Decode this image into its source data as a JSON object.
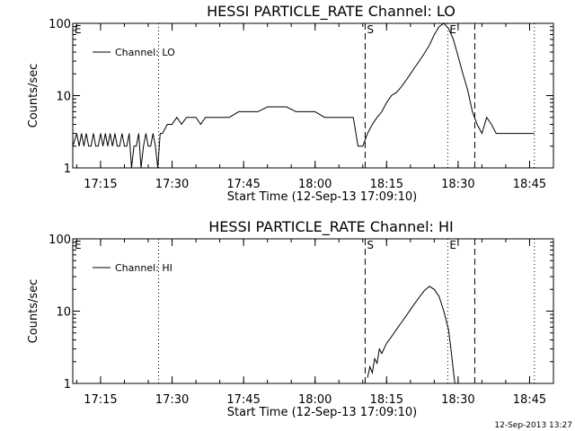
{
  "footer": {
    "timestamp": "12-Sep-2013 13:27"
  },
  "chart_data": [
    {
      "type": "line",
      "title": "HESSI PARTICLE_RATE Channel: LO",
      "xlabel": "Start Time (12-Sep-13 17:09:10)",
      "ylabel": "Counts/sec",
      "y_scale": "log",
      "xlim": [
        "17:09:10",
        "18:50:00"
      ],
      "ylim": [
        1,
        100
      ],
      "x_ticks": [
        "17:15",
        "17:30",
        "17:45",
        "18:00",
        "18:15",
        "18:30",
        "18:45"
      ],
      "y_ticks": [
        "1",
        "10",
        "100"
      ],
      "legend": {
        "placement": "top-left",
        "entries": [
          "Channel: LO"
        ]
      },
      "markers": [
        {
          "label": "E",
          "time": "17:09:10",
          "style": "none"
        },
        {
          "label": "",
          "time": "17:27:10",
          "style": "dotted"
        },
        {
          "label": "S",
          "time": "18:10:30",
          "style": "dashed"
        },
        {
          "label": "E",
          "time": "18:27:50",
          "style": "dotted"
        },
        {
          "label": "",
          "time": "18:33:30",
          "style": "dashed"
        },
        {
          "label": "",
          "time": "18:46:00",
          "style": "dotted"
        }
      ],
      "series": [
        {
          "x": [
            "17:09:10",
            "17:10:00",
            "17:10:30",
            "17:11:00",
            "17:11:30",
            "17:12:00",
            "17:12:30",
            "17:13:00",
            "17:13:30",
            "17:14:00",
            "17:14:30",
            "17:15:00",
            "17:15:30",
            "17:16:00",
            "17:16:30",
            "17:17:00",
            "17:17:30",
            "17:18:00",
            "17:18:30",
            "17:19:00",
            "17:19:30",
            "17:20:00",
            "17:20:30",
            "17:21:00",
            "17:21:30",
            "17:22:00",
            "17:22:30",
            "17:23:00",
            "17:23:30",
            "17:24:00",
            "17:24:30",
            "17:25:00",
            "17:25:30",
            "17:26:00",
            "17:26:30",
            "17:27:00",
            "17:27:30",
            "17:28:00",
            "17:29:00",
            "17:30:00",
            "17:31:00",
            "17:32:00",
            "17:33:00",
            "17:34:00",
            "17:35:00",
            "17:36:00",
            "17:37:00",
            "17:38:00",
            "17:39:00",
            "17:40:00",
            "17:42:00",
            "17:44:00",
            "17:46:00",
            "17:48:00",
            "17:50:00",
            "17:52:00",
            "17:54:00",
            "17:56:00",
            "17:58:00",
            "18:00:00",
            "18:02:00",
            "18:04:00",
            "18:06:00",
            "18:07:00",
            "18:08:00",
            "18:09:00",
            "18:10:00",
            "18:11:00",
            "18:12:00",
            "18:13:00",
            "18:14:00",
            "18:15:00",
            "18:16:00",
            "18:17:00",
            "18:18:00",
            "18:19:00",
            "18:20:00",
            "18:21:00",
            "18:22:00",
            "18:23:00",
            "18:24:00",
            "18:25:00",
            "18:26:00",
            "18:27:00",
            "18:28:00",
            "18:29:00",
            "18:30:00",
            "18:31:00",
            "18:32:00",
            "18:33:00",
            "18:34:00",
            "18:35:00",
            "18:36:00",
            "18:37:00",
            "18:38:00",
            "18:40:00",
            "18:42:00",
            "18:44:00",
            "18:46:00"
          ],
          "y": [
            2,
            3,
            2,
            3,
            2,
            3,
            2,
            2,
            3,
            2,
            2,
            3,
            2,
            3,
            2,
            3,
            2,
            3,
            2,
            2,
            3,
            2,
            2,
            3,
            1,
            2,
            2,
            3,
            1,
            2,
            3,
            2,
            2,
            3,
            2,
            1,
            3,
            3,
            4,
            4,
            5,
            4,
            5,
            5,
            5,
            4,
            5,
            5,
            5,
            5,
            5,
            6,
            6,
            6,
            7,
            7,
            7,
            6,
            6,
            6,
            5,
            5,
            5,
            5,
            5,
            2,
            2,
            3,
            4,
            5,
            6,
            8,
            10,
            11,
            13,
            16,
            20,
            25,
            31,
            39,
            50,
            70,
            90,
            100,
            85,
            60,
            35,
            20,
            12,
            6,
            4,
            3,
            5,
            4,
            3,
            3,
            3,
            3,
            3
          ]
        }
      ]
    },
    {
      "type": "line",
      "title": "HESSI PARTICLE_RATE Channel: HI",
      "xlabel": "Start Time (12-Sep-13 17:09:10)",
      "ylabel": "Counts/sec",
      "y_scale": "log",
      "xlim": [
        "17:09:10",
        "18:50:00"
      ],
      "ylim": [
        1,
        100
      ],
      "x_ticks": [
        "17:15",
        "17:30",
        "17:45",
        "18:00",
        "18:15",
        "18:30",
        "18:45"
      ],
      "y_ticks": [
        "1",
        "10",
        "100"
      ],
      "legend": {
        "placement": "top-left",
        "entries": [
          "Channel: HI"
        ]
      },
      "markers": [
        {
          "label": "E",
          "time": "17:09:10",
          "style": "none"
        },
        {
          "label": "",
          "time": "17:27:10",
          "style": "dotted"
        },
        {
          "label": "S",
          "time": "18:10:30",
          "style": "dashed"
        },
        {
          "label": "E",
          "time": "18:27:50",
          "style": "dotted"
        },
        {
          "label": "",
          "time": "18:33:30",
          "style": "dashed"
        },
        {
          "label": "",
          "time": "18:46:00",
          "style": "dotted"
        }
      ],
      "series": [
        {
          "x": [
            "18:11:00",
            "18:11:30",
            "18:12:00",
            "18:12:30",
            "18:13:00",
            "18:13:30",
            "18:14:00",
            "18:15:00",
            "18:16:00",
            "18:17:00",
            "18:18:00",
            "18:19:00",
            "18:20:00",
            "18:21:00",
            "18:22:00",
            "18:23:00",
            "18:24:00",
            "18:25:00",
            "18:26:00",
            "18:27:00",
            "18:28:00",
            "18:28:30",
            "18:29:00",
            "18:29:20"
          ],
          "y": [
            1.2,
            1.7,
            1.4,
            2.2,
            1.9,
            3.0,
            2.6,
            3.6,
            4.4,
            5.5,
            6.8,
            8.4,
            10.5,
            13.0,
            16.0,
            19.5,
            22.0,
            20.0,
            16.0,
            10.0,
            5.5,
            3.0,
            1.5,
            1.0
          ]
        }
      ]
    }
  ]
}
